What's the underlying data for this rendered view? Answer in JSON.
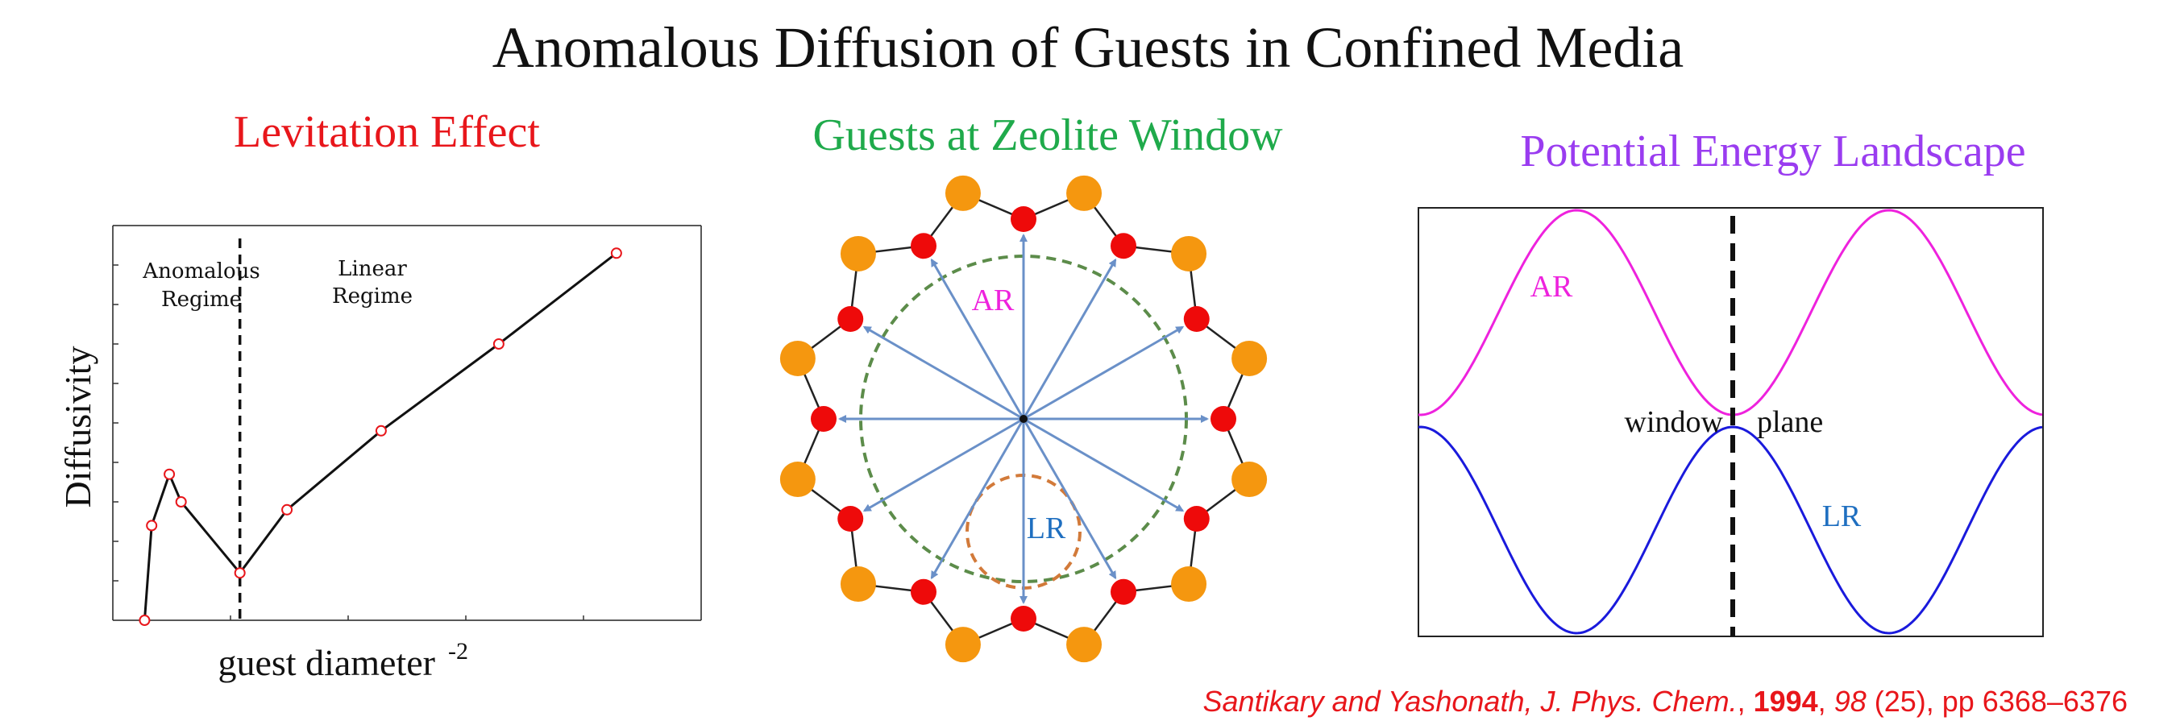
{
  "title": "Anomalous Diffusion of Guests in Confined Media",
  "panels": {
    "levitation": {
      "title": "Levitation Effect",
      "xlabel": "guest diameter",
      "xlabel_sup": "-2",
      "ylabel": "Diffusivity",
      "regime_anomalous": [
        "Anomalous",
        "Regime"
      ],
      "regime_linear": [
        "Linear",
        "Regime"
      ]
    },
    "zeolite": {
      "title": "Guests at Zeolite Window",
      "label_ar": "AR",
      "label_lr": "LR"
    },
    "energy": {
      "title": "Potential Energy Landscape",
      "label_ar": "AR",
      "label_lr": "LR",
      "window_label": "window",
      "plane_label": "plane"
    }
  },
  "colors": {
    "red": "#e8161b",
    "green": "#1faa4b",
    "purple": "#9a3cf0",
    "magenta": "#ee22dd",
    "blue": "#1a1adc",
    "orange": "#f5970f",
    "node_red": "#ee0a0a",
    "arrow_blue": "#6a90c8"
  },
  "citation": {
    "authors": "Santikary and Yashonath, ",
    "journal": "J. Phys. Chem.",
    "sep1": ", ",
    "year": "1994",
    "sep2": ", ",
    "volume": "98",
    "rest": " (25), pp 6368–6376"
  },
  "chart_data": {
    "type": "line",
    "title": "Levitation Effect",
    "xlabel": "guest diameter -2",
    "ylabel": "Diffusivity",
    "x": [
      0.27,
      0.33,
      0.48,
      0.58,
      1.08,
      1.48,
      2.28,
      3.28,
      4.28
    ],
    "values": [
      0.0,
      1.2,
      1.85,
      1.5,
      0.6,
      1.4,
      2.4,
      3.5,
      4.65
    ],
    "xlim": [
      0,
      5
    ],
    "ylim": [
      0,
      5
    ],
    "divider_x": 1.08,
    "grid": false
  }
}
